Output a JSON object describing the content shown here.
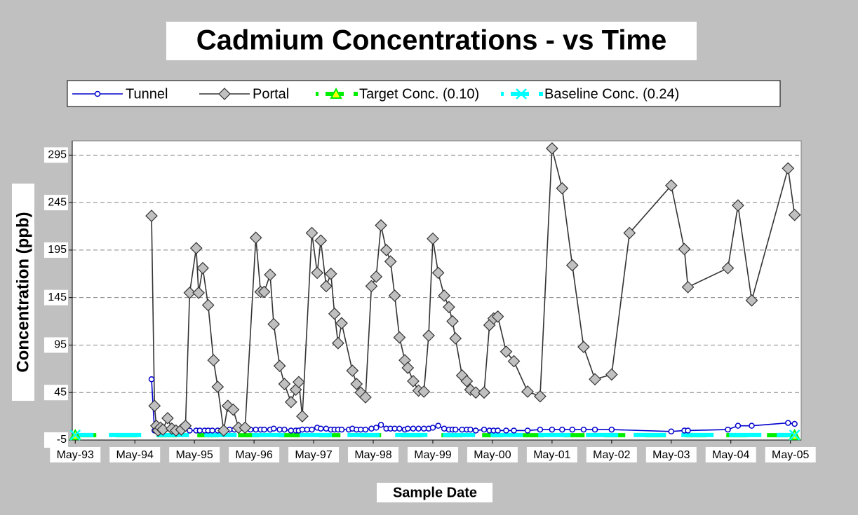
{
  "chart_data": {
    "type": "line",
    "title": "Cadmium Concentrations - vs Time",
    "x_label": "Sample Date",
    "y_label": "Concentration (ppb)",
    "xlim": [
      1993.28,
      2005.51
    ],
    "xticks": [
      {
        "value": 1993.33,
        "label": "May-93"
      },
      {
        "value": 1994.33,
        "label": "May-94"
      },
      {
        "value": 1995.33,
        "label": "May-95"
      },
      {
        "value": 1996.33,
        "label": "May-96"
      },
      {
        "value": 1997.33,
        "label": "May-97"
      },
      {
        "value": 1998.33,
        "label": "May-98"
      },
      {
        "value": 1999.33,
        "label": "May-99"
      },
      {
        "value": 2000.33,
        "label": "May-00"
      },
      {
        "value": 2001.33,
        "label": "May-01"
      },
      {
        "value": 2002.33,
        "label": "May-02"
      },
      {
        "value": 2003.33,
        "label": "May-03"
      },
      {
        "value": 2004.33,
        "label": "May-04"
      },
      {
        "value": 2005.33,
        "label": "May-05"
      }
    ],
    "ylim": [
      -5,
      310
    ],
    "yticks": [
      -5,
      45,
      95,
      145,
      195,
      245,
      295
    ],
    "grid": true,
    "legend": "top",
    "series": [
      {
        "name": "Tunnel",
        "color": "#0000cc",
        "marker": "circle",
        "dash": "solid",
        "x": [
          1994.61,
          1994.66,
          1995.25,
          1995.36,
          1995.42,
          1995.5,
          1995.56,
          1995.63,
          1995.72,
          1995.82,
          1995.92,
          1996.0,
          1996.07,
          1996.18,
          1996.27,
          1996.36,
          1996.44,
          1996.5,
          1996.6,
          1996.66,
          1996.76,
          1996.84,
          1996.95,
          1997.03,
          1997.08,
          1997.14,
          1997.22,
          1997.3,
          1997.39,
          1997.45,
          1997.54,
          1997.62,
          1997.68,
          1997.74,
          1997.8,
          1997.92,
          1997.98,
          1998.05,
          1998.12,
          1998.2,
          1998.3,
          1998.38,
          1998.46,
          1998.55,
          1998.62,
          1998.69,
          1998.77,
          1998.86,
          1998.91,
          1999.0,
          1999.09,
          1999.18,
          1999.26,
          1999.33,
          1999.42,
          1999.52,
          1999.6,
          1999.66,
          1999.71,
          1999.82,
          1999.9,
          1999.96,
          2000.05,
          2000.19,
          2000.28,
          2000.35,
          2000.42,
          2000.56,
          2000.69,
          2000.92,
          2001.13,
          2001.33,
          2001.5,
          2001.67,
          2001.86,
          2002.05,
          2002.33,
          2003.33,
          2003.55,
          2003.61,
          2004.28,
          2004.45,
          2004.68,
          2005.29,
          2005.4
        ],
        "values": [
          59,
          5,
          5,
          5,
          5,
          5,
          5,
          5,
          5,
          5,
          6,
          6,
          6,
          6,
          6,
          6,
          6,
          6,
          6,
          7,
          6,
          6,
          5,
          5,
          5,
          6,
          6,
          6,
          8,
          7,
          7,
          6,
          6,
          6,
          6,
          6,
          7,
          6,
          6,
          6,
          7,
          8,
          11,
          7,
          7,
          7,
          7,
          6,
          7,
          7,
          7,
          7,
          7,
          8,
          10,
          7,
          6,
          6,
          6,
          6,
          6,
          6,
          5,
          6,
          5,
          5,
          5,
          5,
          5,
          5,
          6,
          6,
          6,
          6,
          6,
          6,
          6,
          4,
          5,
          5,
          6,
          10,
          10,
          13,
          12
        ]
      },
      {
        "name": "Portal",
        "color": "#333333",
        "marker": "diamond",
        "dash": "solid",
        "x": [
          1994.61,
          1994.66,
          1994.69,
          1994.72,
          1994.76,
          1994.8,
          1994.88,
          1994.95,
          1995.02,
          1995.11,
          1995.18,
          1995.25,
          1995.36,
          1995.4,
          1995.47,
          1995.56,
          1995.65,
          1995.72,
          1995.82,
          1995.89,
          1995.98,
          1996.07,
          1996.18,
          1996.36,
          1996.44,
          1996.5,
          1996.6,
          1996.66,
          1996.76,
          1996.84,
          1996.95,
          1997.03,
          1997.08,
          1997.14,
          1997.3,
          1997.39,
          1997.45,
          1997.54,
          1997.62,
          1997.68,
          1997.74,
          1997.8,
          1997.98,
          1998.05,
          1998.12,
          1998.2,
          1998.3,
          1998.38,
          1998.46,
          1998.55,
          1998.62,
          1998.69,
          1998.77,
          1998.86,
          1998.91,
          1999.0,
          1999.09,
          1999.18,
          1999.26,
          1999.33,
          1999.42,
          1999.52,
          1999.6,
          1999.66,
          1999.71,
          1999.82,
          1999.9,
          1999.96,
          2000.05,
          2000.19,
          2000.28,
          2000.35,
          2000.42,
          2000.56,
          2000.69,
          2000.92,
          2001.13,
          2001.33,
          2001.5,
          2001.67,
          2001.86,
          2002.05,
          2002.33,
          2002.63,
          2003.33,
          2003.55,
          2003.61,
          2004.28,
          2004.45,
          2004.68,
          2005.29,
          2005.4
        ],
        "values": [
          231,
          31,
          10,
          5,
          8,
          6,
          18,
          7,
          5,
          6,
          10,
          150,
          197,
          150,
          176,
          137,
          79,
          51,
          5,
          31,
          27,
          8,
          8,
          208,
          151,
          151,
          169,
          117,
          73,
          54,
          35,
          48,
          56,
          20,
          213,
          171,
          205,
          157,
          170,
          128,
          97,
          118,
          68,
          54,
          45,
          40,
          157,
          167,
          221,
          195,
          183,
          147,
          103,
          79,
          71,
          57,
          47,
          46,
          105,
          207,
          171,
          147,
          135,
          120,
          102,
          63,
          57,
          48,
          45,
          45,
          116,
          123,
          125,
          88,
          78,
          46,
          41,
          302,
          260,
          179,
          93,
          59,
          64,
          213,
          263,
          196,
          156,
          176,
          242,
          142,
          281,
          232
        ]
      },
      {
        "name": "Target Conc. (0.10)",
        "color": "#00ee00",
        "marker": "triangle",
        "dash": "dashed",
        "x": [
          1993.33,
          2005.4
        ],
        "values": [
          0.1,
          0.1
        ]
      },
      {
        "name": "Baseline Conc. (0.24)",
        "color": "#00ffff",
        "marker": "x",
        "dash": "dashed",
        "x": [
          1993.33,
          2005.4
        ],
        "values": [
          0.24,
          0.24
        ]
      }
    ]
  }
}
